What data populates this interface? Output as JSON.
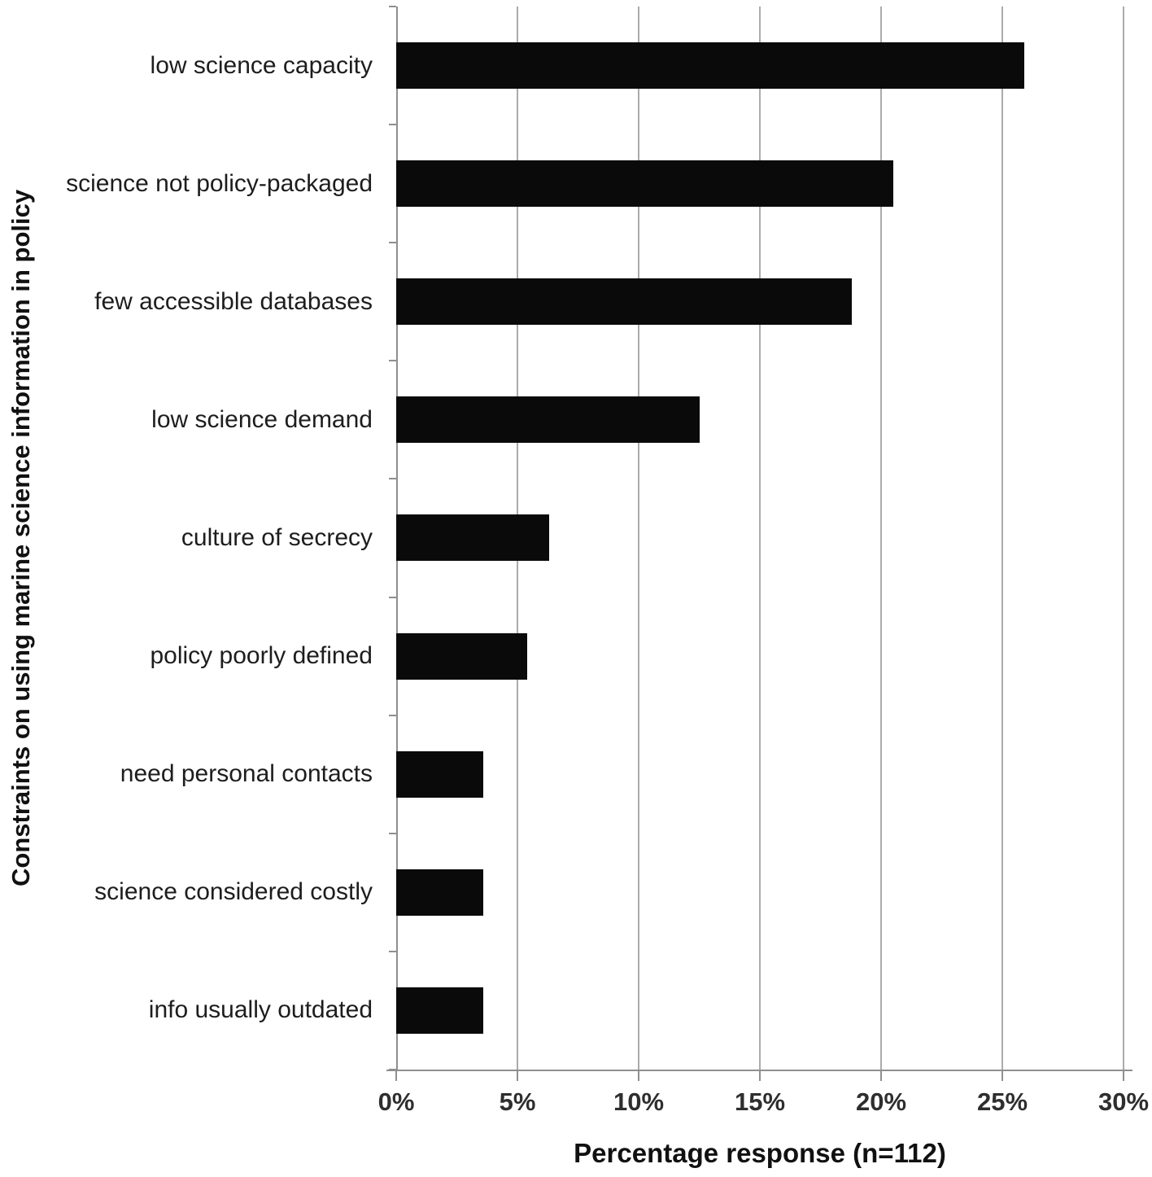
{
  "chart_data": {
    "type": "bar",
    "orientation": "horizontal",
    "categories": [
      "low science capacity",
      "science not policy-packaged",
      "few accessible databases",
      "low science demand",
      "culture of secrecy",
      "policy poorly defined",
      "need personal contacts",
      "science considered costly",
      "info usually outdated"
    ],
    "values": [
      25.9,
      20.5,
      18.8,
      12.5,
      6.3,
      5.4,
      3.6,
      3.6,
      3.6
    ],
    "title": "",
    "xlabel": "Percentage response (n=112)",
    "ylabel": "Constraints on using marine science information in policy",
    "xlim": [
      0,
      30
    ],
    "x_ticks": [
      0,
      5,
      10,
      15,
      20,
      25,
      30
    ],
    "x_tick_labels": [
      "0%",
      "5%",
      "10%",
      "15%",
      "20%",
      "25%",
      "30%"
    ],
    "grid": true,
    "legend": false,
    "colors": {
      "bar": "#0a0a0a",
      "gridline": "#ababab",
      "axis": "#8f8f8f",
      "tick_label": "#2e2e2e",
      "category_label": "#1d1d1d",
      "axis_title": "#111111",
      "background": "#ffffff"
    }
  }
}
